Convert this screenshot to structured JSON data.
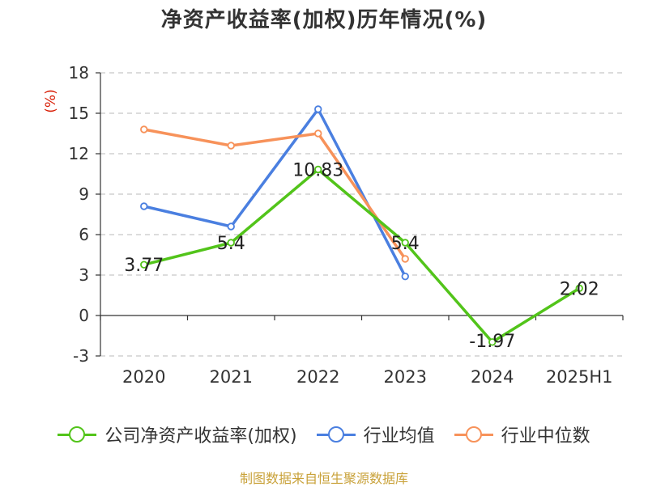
{
  "chart_data": {
    "type": "line",
    "title": "净资产收益率(加权)历年情况(%)",
    "ylabel": "(%)",
    "categories": [
      "2020",
      "2021",
      "2022",
      "2023",
      "2024",
      "2025H1"
    ],
    "yticks": [
      "18",
      "15",
      "12",
      "9",
      "6",
      "3",
      "0",
      "-3"
    ],
    "ylim": [
      -3,
      18
    ],
    "grid": true,
    "legend_position": "bottom",
    "series": [
      {
        "name": "公司净资产收益率(加权)",
        "color": "#52c41a",
        "values": [
          3.77,
          5.4,
          10.83,
          5.4,
          -1.97,
          2.02
        ],
        "labels": [
          "3.77",
          "5.4",
          "10.83",
          "5.4",
          "-1.97",
          "2.02"
        ]
      },
      {
        "name": "行业均值",
        "color": "#4a7fe0",
        "values": [
          8.1,
          6.6,
          15.3,
          2.9,
          null,
          null
        ]
      },
      {
        "name": "行业中位数",
        "color": "#f7925a",
        "values": [
          13.8,
          12.6,
          13.5,
          4.2,
          null,
          null
        ]
      }
    ]
  },
  "source": "制图数据来自恒生聚源数据库"
}
